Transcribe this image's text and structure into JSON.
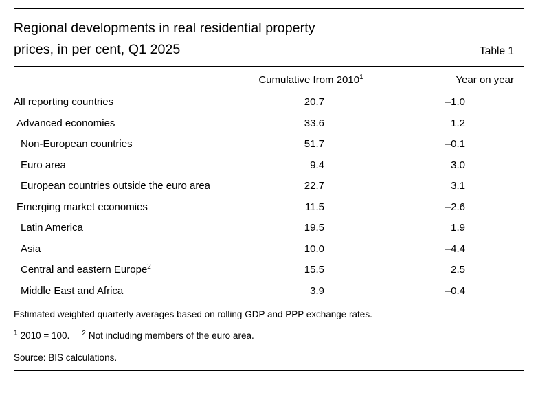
{
  "title": {
    "line1": "Regional developments in real residential property",
    "line2": "prices, in per cent, Q1 2025"
  },
  "table_label": "Table 1",
  "columns": {
    "cumulative_label": "Cumulative from 2010",
    "cumulative_sup": "1",
    "yoy_label": "Year on year"
  },
  "rows": [
    {
      "label": "All reporting countries",
      "cumulative": "20.7",
      "yoy": "–1.0"
    },
    {
      "label": "Advanced economies",
      "cumulative": "33.6",
      "yoy": "1.2"
    },
    {
      "label": "Non-European countries",
      "cumulative": "51.7",
      "yoy": "–0.1"
    },
    {
      "label": "Euro area",
      "cumulative": "9.4",
      "yoy": "3.0"
    },
    {
      "label": "European countries outside the euro area",
      "cumulative": "22.7",
      "yoy": "3.1"
    },
    {
      "label": "Emerging market economies",
      "cumulative": "11.5",
      "yoy": "–2.6"
    },
    {
      "label": "Latin America",
      "cumulative": "19.5",
      "yoy": "1.9"
    },
    {
      "label": "Asia",
      "cumulative": "10.0",
      "yoy": "–4.4"
    },
    {
      "label": "Central and eastern Europe",
      "label_sup": "2",
      "cumulative": "15.5",
      "yoy": "2.5"
    },
    {
      "label": "Middle East and Africa",
      "cumulative": "3.9",
      "yoy": "–0.4"
    }
  ],
  "notes": {
    "method": "Estimated weighted quarterly averages based on rolling GDP and PPP exchange rates.",
    "footnote1_marker": "1",
    "footnote1_text": "2010 = 100.",
    "footnote2_marker": "2",
    "footnote2_text": "Not including members of the euro area.",
    "source": "Source: BIS calculations."
  },
  "colors": {
    "text": "#000000",
    "background": "#ffffff",
    "rule": "#000000"
  }
}
